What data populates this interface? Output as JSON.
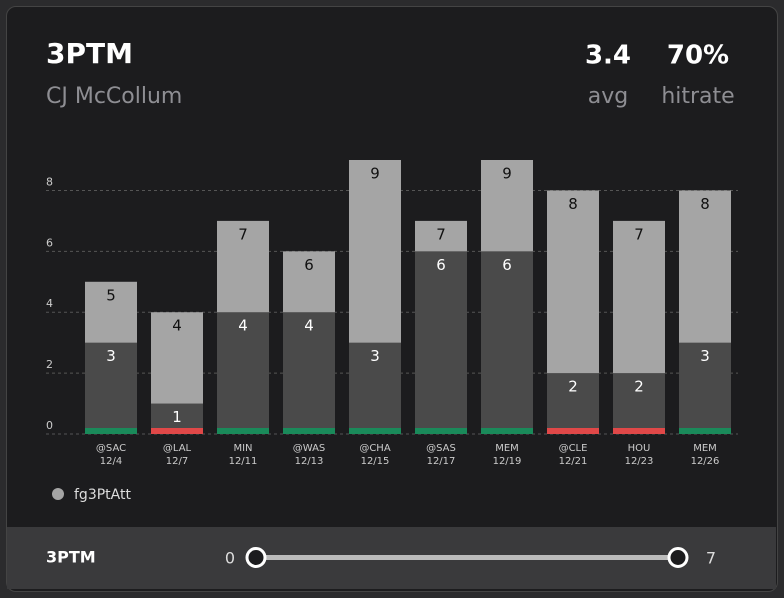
{
  "header": {
    "title": "3PTM",
    "subtitle": "CJ McCollum",
    "stats": [
      {
        "value": "3.4",
        "label": "avg"
      },
      {
        "value": "70%",
        "label": "hitrate"
      }
    ]
  },
  "chart_data": {
    "type": "bar",
    "categories": [
      "@SAC",
      "@LAL",
      "MIN",
      "@WAS",
      "@CHA",
      "@SAS",
      "MEM",
      "@CLE",
      "HOU",
      "MEM"
    ],
    "dates": [
      "12/4",
      "12/7",
      "12/11",
      "12/13",
      "12/15",
      "12/17",
      "12/19",
      "12/21",
      "12/23",
      "12/26"
    ],
    "series": [
      {
        "name": "fg3PtAtt",
        "color": "#a5a5a5",
        "values": [
          5,
          4,
          7,
          6,
          9,
          7,
          9,
          8,
          7,
          8
        ]
      },
      {
        "color": "#4a4a4a",
        "values": [
          3,
          1,
          4,
          4,
          3,
          6,
          6,
          2,
          2,
          3
        ]
      }
    ],
    "result_colors": [
      "#1a8a5a",
      "#e04848",
      "#1a8a5a",
      "#1a8a5a",
      "#1a8a5a",
      "#1a8a5a",
      "#1a8a5a",
      "#e04848",
      "#e04848",
      "#1a8a5a"
    ],
    "ylim": [
      0,
      9
    ],
    "yticks": [
      0,
      2,
      4,
      6,
      8
    ],
    "grid": true
  },
  "slider": {
    "label": "3PTM",
    "min": 0,
    "max": 7
  }
}
